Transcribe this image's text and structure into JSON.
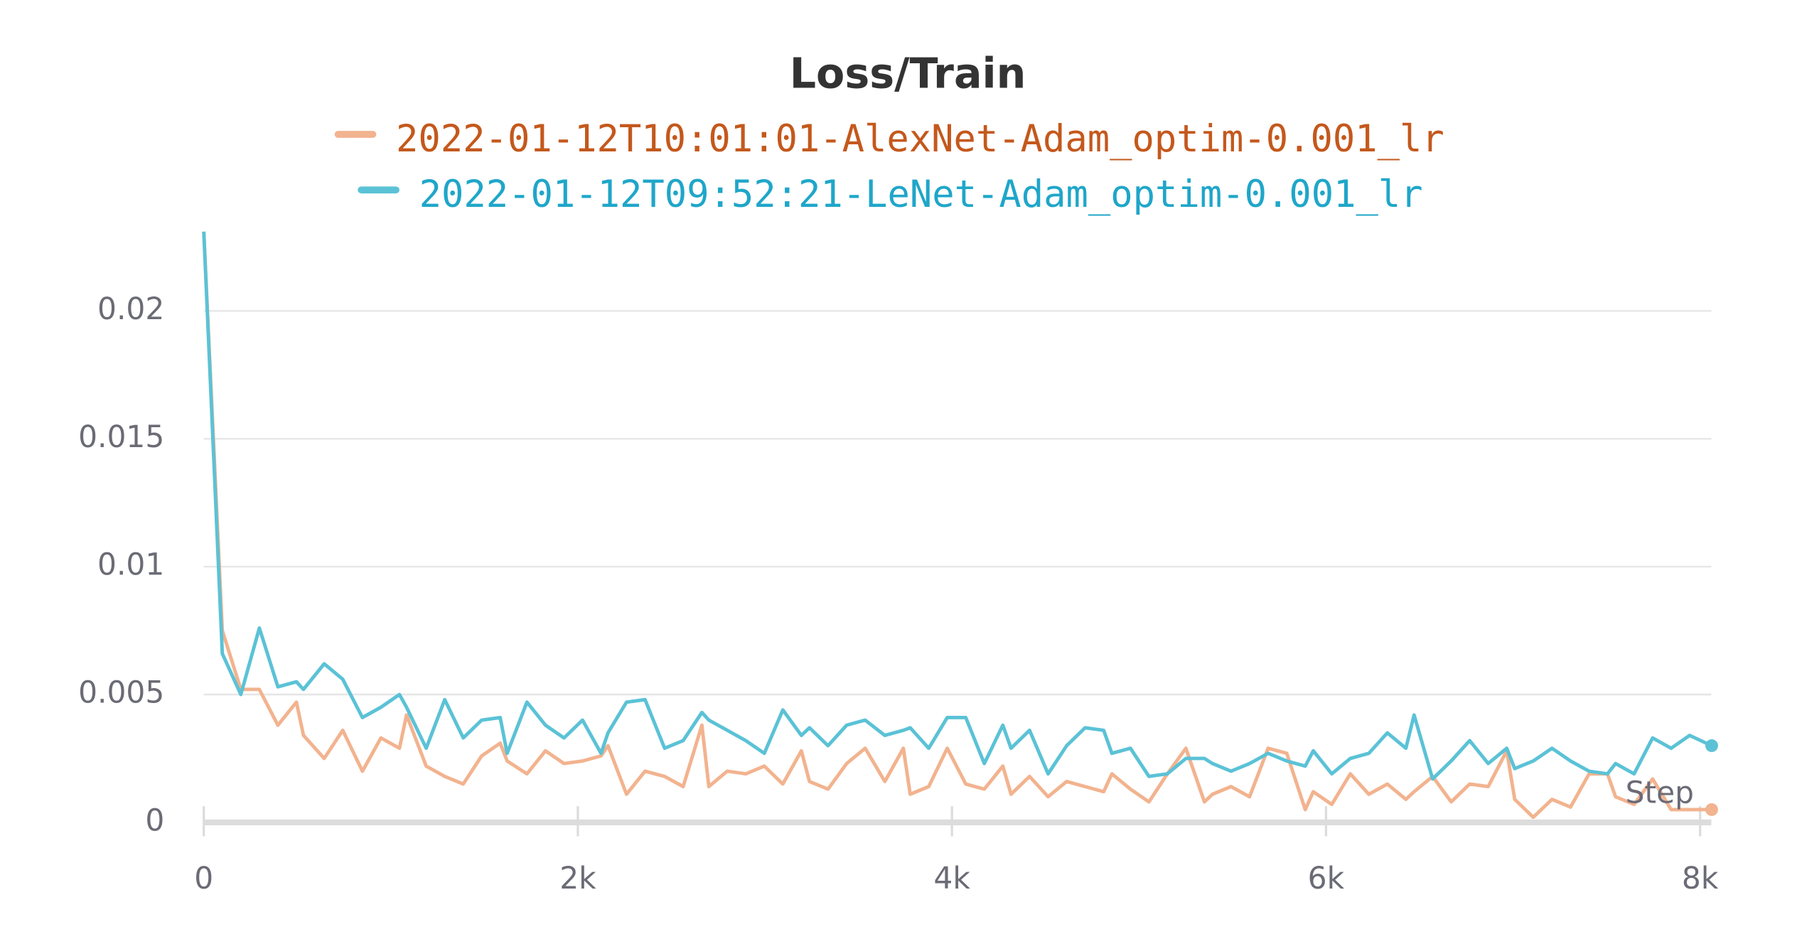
{
  "chart_data": {
    "type": "line",
    "title": "Loss/Train",
    "xlabel": "Step",
    "x": [
      0,
      99,
      198,
      297,
      396,
      495,
      533,
      644,
      743,
      848,
      947,
      1046,
      1084,
      1189,
      1288,
      1387,
      1486,
      1585,
      1622,
      1728,
      1827,
      1926,
      2025,
      2124,
      2161,
      2260,
      2359,
      2464,
      2563,
      2663,
      2700,
      2799,
      2898,
      2997,
      3096,
      3195,
      3238,
      3337,
      3437,
      3536,
      3641,
      3740,
      3777,
      3876,
      3975,
      4074,
      4173,
      4272,
      4316,
      4415,
      4514,
      4613,
      4712,
      4811,
      4855,
      4954,
      5053,
      5152,
      5251,
      5350,
      5393,
      5492,
      5591,
      5690,
      5790,
      5889,
      5932,
      6031,
      6130,
      6229,
      6328,
      6427,
      6471,
      6570,
      6669,
      6768,
      6867,
      6966,
      7009,
      7108,
      7208,
      7307,
      7406,
      7505,
      7548,
      7647,
      7746,
      7845,
      7944,
      8062
    ],
    "series": [
      {
        "name": "2022-01-12T10:01:01-AlexNet-Adam_optim-0.001_lr",
        "color": "#f2b38f",
        "text_color": "#c4581c",
        "values": [
          0.0231,
          0.0075,
          0.0052,
          0.0052,
          0.0038,
          0.0047,
          0.0034,
          0.0025,
          0.0036,
          0.002,
          0.0033,
          0.0029,
          0.0042,
          0.0022,
          0.0018,
          0.0015,
          0.0026,
          0.0031,
          0.0024,
          0.0019,
          0.0028,
          0.0023,
          0.0024,
          0.0026,
          0.003,
          0.0011,
          0.002,
          0.0018,
          0.0014,
          0.0038,
          0.0014,
          0.002,
          0.0019,
          0.0022,
          0.0015,
          0.0028,
          0.0016,
          0.0013,
          0.0023,
          0.0029,
          0.0016,
          0.0029,
          0.0011,
          0.0014,
          0.0029,
          0.0015,
          0.0013,
          0.0022,
          0.0011,
          0.0018,
          0.001,
          0.0016,
          0.0014,
          0.0012,
          0.0019,
          0.0013,
          0.0008,
          0.0019,
          0.0029,
          0.0008,
          0.0011,
          0.0014,
          0.001,
          0.0029,
          0.0027,
          0.0005,
          0.0012,
          0.0007,
          0.0019,
          0.0011,
          0.0015,
          0.0009,
          0.0012,
          0.0018,
          0.0008,
          0.0015,
          0.0014,
          0.0028,
          0.0009,
          0.0002,
          0.0009,
          0.0006,
          0.0019,
          0.0019,
          0.001,
          0.0007,
          0.0017,
          0.0005,
          0.0005,
          0.0005
        ]
      },
      {
        "name": "2022-01-12T09:52:21-LeNet-Adam_optim-0.001_lr",
        "color": "#5bc2d6",
        "text_color": "#1fa6c9",
        "values": [
          0.0231,
          0.0066,
          0.005,
          0.0076,
          0.0053,
          0.0055,
          0.0052,
          0.0062,
          0.0056,
          0.0041,
          0.0045,
          0.005,
          0.0045,
          0.0029,
          0.0048,
          0.0033,
          0.004,
          0.0041,
          0.0027,
          0.0047,
          0.0038,
          0.0033,
          0.004,
          0.0027,
          0.0035,
          0.0047,
          0.0048,
          0.0029,
          0.0032,
          0.0043,
          0.004,
          0.0036,
          0.0032,
          0.0027,
          0.0044,
          0.0034,
          0.0037,
          0.003,
          0.0038,
          0.004,
          0.0034,
          0.0036,
          0.0037,
          0.0029,
          0.0041,
          0.0041,
          0.0023,
          0.0038,
          0.0029,
          0.0036,
          0.0019,
          0.003,
          0.0037,
          0.0036,
          0.0027,
          0.0029,
          0.0018,
          0.0019,
          0.0025,
          0.0025,
          0.0023,
          0.002,
          0.0023,
          0.0027,
          0.0024,
          0.0022,
          0.0028,
          0.0019,
          0.0025,
          0.0027,
          0.0035,
          0.0029,
          0.0042,
          0.0017,
          0.0024,
          0.0032,
          0.0023,
          0.0029,
          0.0021,
          0.0024,
          0.0029,
          0.0024,
          0.002,
          0.0019,
          0.0023,
          0.0019,
          0.0033,
          0.0029,
          0.0034,
          0.003
        ]
      }
    ],
    "xlim": [
      0,
      8060
    ],
    "ylim": [
      0,
      0.0231
    ],
    "xticks": [
      0,
      {
        "value": 2000,
        "label": "2k"
      },
      {
        "value": 4000,
        "label": "4k"
      },
      {
        "value": 6000,
        "label": "6k"
      },
      {
        "value": 8000,
        "label": "8k"
      }
    ],
    "yticks": [
      0,
      0.005,
      0.01,
      0.015,
      0.02
    ],
    "grid": true
  }
}
